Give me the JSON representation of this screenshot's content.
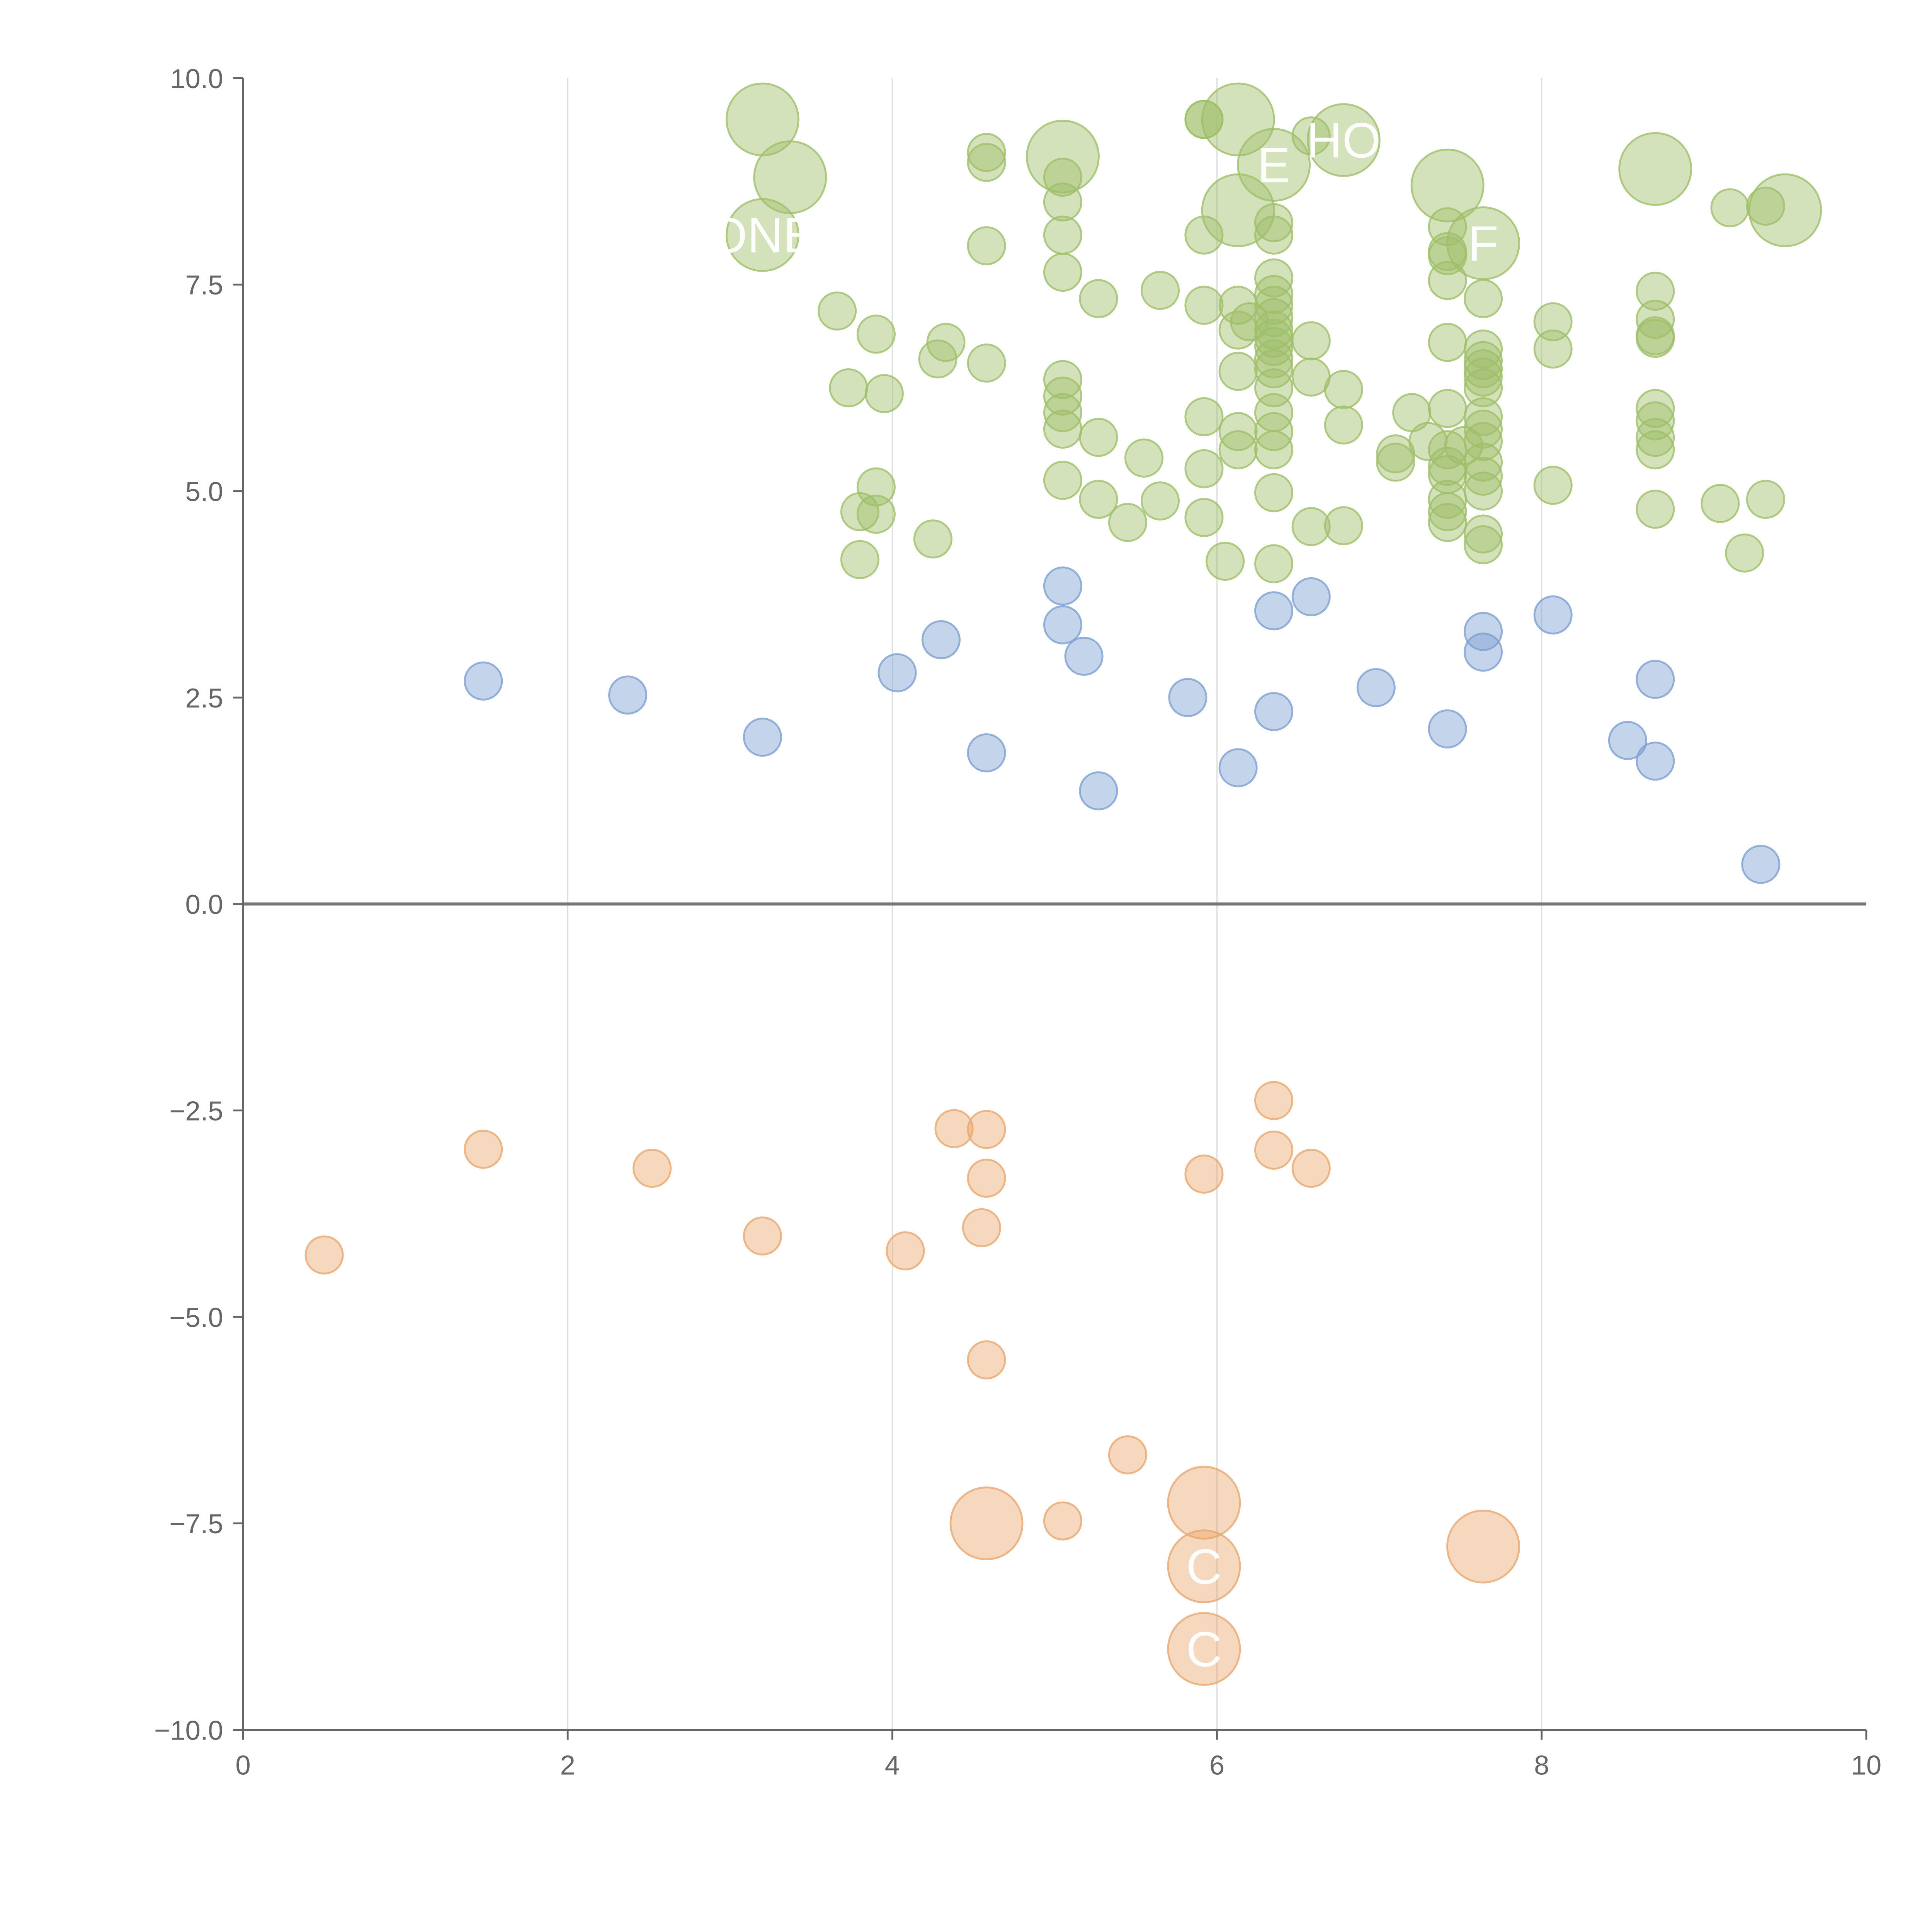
{
  "chart_data": {
    "type": "scatter",
    "title": "",
    "xlabel": "",
    "ylabel": "",
    "xlim": [
      0,
      10
    ],
    "ylim": [
      -10,
      10
    ],
    "xticks": [
      0,
      2,
      4,
      6,
      8,
      10
    ],
    "xtick_labels": [
      "0",
      "2",
      "4",
      "6",
      "8",
      "10"
    ],
    "yticks": [
      -10,
      -7.5,
      -5,
      -2.5,
      0,
      2.5,
      5,
      7.5,
      10
    ],
    "ytick_labels": [
      "−10.0",
      "−7.5",
      "−5.0",
      "−2.5",
      "0.0",
      "2.5",
      "5.0",
      "7.5",
      "10.0"
    ],
    "vertical_grid": true,
    "horizontal_grid": false,
    "zero_line": true,
    "legend": "none",
    "series": [
      {
        "color": "#9fbf6a",
        "points": [
          {
            "x": 3.2,
            "y": 9.5,
            "size": "large"
          },
          {
            "x": 3.37,
            "y": 8.8,
            "size": "large"
          },
          {
            "x": 3.2,
            "y": 8.1,
            "size": "large",
            "label": "ONE"
          },
          {
            "x": 4.58,
            "y": 9.1,
            "size": "small"
          },
          {
            "x": 4.58,
            "y": 8.98,
            "size": "small"
          },
          {
            "x": 5.05,
            "y": 9.05,
            "size": "large"
          },
          {
            "x": 5.05,
            "y": 8.8,
            "size": "small"
          },
          {
            "x": 5.05,
            "y": 8.5,
            "size": "small"
          },
          {
            "x": 5.05,
            "y": 8.1,
            "size": "small"
          },
          {
            "x": 4.58,
            "y": 7.97,
            "size": "small"
          },
          {
            "x": 5.05,
            "y": 7.65,
            "size": "small"
          },
          {
            "x": 5.92,
            "y": 9.5,
            "size": "small"
          },
          {
            "x": 5.92,
            "y": 9.5,
            "size": "small"
          },
          {
            "x": 6.13,
            "y": 9.5,
            "size": "large"
          },
          {
            "x": 6.35,
            "y": 8.95,
            "size": "large",
            "label": "E"
          },
          {
            "x": 6.58,
            "y": 9.3,
            "size": "small"
          },
          {
            "x": 6.78,
            "y": 9.25,
            "size": "large",
            "label": "HO"
          },
          {
            "x": 6.13,
            "y": 8.4,
            "size": "large"
          },
          {
            "x": 5.92,
            "y": 8.1,
            "size": "small"
          },
          {
            "x": 6.35,
            "y": 8.25,
            "size": "small"
          },
          {
            "x": 6.35,
            "y": 8.1,
            "size": "small"
          },
          {
            "x": 7.42,
            "y": 8.7,
            "size": "large"
          },
          {
            "x": 7.42,
            "y": 8.2,
            "size": "small"
          },
          {
            "x": 7.64,
            "y": 8.0,
            "size": "large",
            "label": "F"
          },
          {
            "x": 7.42,
            "y": 7.9,
            "size": "small"
          },
          {
            "x": 7.42,
            "y": 7.85,
            "size": "small"
          },
          {
            "x": 7.42,
            "y": 7.55,
            "size": "small"
          },
          {
            "x": 7.64,
            "y": 7.33,
            "size": "small"
          },
          {
            "x": 8.7,
            "y": 8.9,
            "size": "large"
          },
          {
            "x": 9.16,
            "y": 8.43,
            "size": "small"
          },
          {
            "x": 9.38,
            "y": 8.45,
            "size": "small"
          },
          {
            "x": 9.5,
            "y": 8.4,
            "size": "large"
          },
          {
            "x": 3.66,
            "y": 7.18,
            "size": "small"
          },
          {
            "x": 3.9,
            "y": 6.9,
            "size": "small"
          },
          {
            "x": 4.33,
            "y": 6.8,
            "size": "small"
          },
          {
            "x": 4.28,
            "y": 6.6,
            "size": "small"
          },
          {
            "x": 4.58,
            "y": 6.55,
            "size": "small"
          },
          {
            "x": 3.73,
            "y": 6.25,
            "size": "small"
          },
          {
            "x": 3.95,
            "y": 6.18,
            "size": "small"
          },
          {
            "x": 5.27,
            "y": 7.33,
            "size": "small"
          },
          {
            "x": 5.65,
            "y": 7.43,
            "size": "small"
          },
          {
            "x": 5.92,
            "y": 7.25,
            "size": "small"
          },
          {
            "x": 6.13,
            "y": 7.25,
            "size": "small"
          },
          {
            "x": 6.35,
            "y": 7.58,
            "size": "small"
          },
          {
            "x": 6.35,
            "y": 7.38,
            "size": "small"
          },
          {
            "x": 6.35,
            "y": 7.25,
            "size": "small"
          },
          {
            "x": 6.2,
            "y": 7.05,
            "size": "small"
          },
          {
            "x": 6.35,
            "y": 7.1,
            "size": "small"
          },
          {
            "x": 6.13,
            "y": 6.95,
            "size": "small"
          },
          {
            "x": 6.35,
            "y": 6.95,
            "size": "small"
          },
          {
            "x": 6.35,
            "y": 6.85,
            "size": "small"
          },
          {
            "x": 6.35,
            "y": 6.75,
            "size": "small"
          },
          {
            "x": 6.58,
            "y": 6.82,
            "size": "small"
          },
          {
            "x": 6.13,
            "y": 6.45,
            "size": "small"
          },
          {
            "x": 6.35,
            "y": 6.6,
            "size": "small"
          },
          {
            "x": 6.35,
            "y": 6.48,
            "size": "small"
          },
          {
            "x": 6.58,
            "y": 6.38,
            "size": "small"
          },
          {
            "x": 6.35,
            "y": 6.25,
            "size": "small"
          },
          {
            "x": 6.78,
            "y": 6.23,
            "size": "small"
          },
          {
            "x": 5.05,
            "y": 6.35,
            "size": "small"
          },
          {
            "x": 5.05,
            "y": 6.15,
            "size": "small"
          },
          {
            "x": 5.05,
            "y": 5.95,
            "size": "small"
          },
          {
            "x": 5.05,
            "y": 5.75,
            "size": "small"
          },
          {
            "x": 5.27,
            "y": 5.65,
            "size": "small"
          },
          {
            "x": 5.55,
            "y": 5.4,
            "size": "small"
          },
          {
            "x": 5.92,
            "y": 5.9,
            "size": "small"
          },
          {
            "x": 6.13,
            "y": 5.72,
            "size": "small"
          },
          {
            "x": 6.13,
            "y": 5.5,
            "size": "small"
          },
          {
            "x": 6.35,
            "y": 5.95,
            "size": "small"
          },
          {
            "x": 6.35,
            "y": 5.72,
            "size": "small"
          },
          {
            "x": 6.35,
            "y": 5.5,
            "size": "small"
          },
          {
            "x": 6.78,
            "y": 5.8,
            "size": "small"
          },
          {
            "x": 5.92,
            "y": 5.27,
            "size": "small"
          },
          {
            "x": 5.05,
            "y": 5.13,
            "size": "small"
          },
          {
            "x": 5.27,
            "y": 4.9,
            "size": "small"
          },
          {
            "x": 5.45,
            "y": 4.62,
            "size": "small"
          },
          {
            "x": 5.65,
            "y": 4.88,
            "size": "small"
          },
          {
            "x": 5.92,
            "y": 4.68,
            "size": "small"
          },
          {
            "x": 6.35,
            "y": 4.98,
            "size": "small"
          },
          {
            "x": 6.58,
            "y": 4.57,
            "size": "small"
          },
          {
            "x": 6.78,
            "y": 4.58,
            "size": "small"
          },
          {
            "x": 6.05,
            "y": 4.15,
            "size": "small"
          },
          {
            "x": 6.35,
            "y": 4.12,
            "size": "small"
          },
          {
            "x": 3.9,
            "y": 5.05,
            "size": "small"
          },
          {
            "x": 3.8,
            "y": 4.75,
            "size": "small"
          },
          {
            "x": 3.9,
            "y": 4.72,
            "size": "small"
          },
          {
            "x": 4.25,
            "y": 4.42,
            "size": "small"
          },
          {
            "x": 3.8,
            "y": 4.17,
            "size": "small"
          },
          {
            "x": 7.2,
            "y": 5.95,
            "size": "small"
          },
          {
            "x": 7.1,
            "y": 5.45,
            "size": "small"
          },
          {
            "x": 7.1,
            "y": 5.35,
            "size": "small"
          },
          {
            "x": 7.3,
            "y": 5.6,
            "size": "small"
          },
          {
            "x": 7.42,
            "y": 6.8,
            "size": "small"
          },
          {
            "x": 7.42,
            "y": 6.0,
            "size": "small"
          },
          {
            "x": 7.42,
            "y": 5.5,
            "size": "small"
          },
          {
            "x": 7.42,
            "y": 5.3,
            "size": "small"
          },
          {
            "x": 7.42,
            "y": 5.2,
            "size": "small"
          },
          {
            "x": 7.52,
            "y": 5.55,
            "size": "small"
          },
          {
            "x": 7.42,
            "y": 4.9,
            "size": "small"
          },
          {
            "x": 7.42,
            "y": 4.75,
            "size": "small"
          },
          {
            "x": 7.42,
            "y": 4.62,
            "size": "small"
          },
          {
            "x": 7.64,
            "y": 6.72,
            "size": "small"
          },
          {
            "x": 7.64,
            "y": 6.58,
            "size": "small"
          },
          {
            "x": 7.64,
            "y": 6.48,
            "size": "small"
          },
          {
            "x": 7.64,
            "y": 6.38,
            "size": "small"
          },
          {
            "x": 7.64,
            "y": 6.25,
            "size": "small"
          },
          {
            "x": 7.64,
            "y": 5.9,
            "size": "small"
          },
          {
            "x": 7.64,
            "y": 5.75,
            "size": "small"
          },
          {
            "x": 7.64,
            "y": 5.6,
            "size": "small"
          },
          {
            "x": 7.64,
            "y": 5.35,
            "size": "small"
          },
          {
            "x": 7.64,
            "y": 5.18,
            "size": "small"
          },
          {
            "x": 7.64,
            "y": 5.0,
            "size": "small"
          },
          {
            "x": 7.64,
            "y": 4.48,
            "size": "small"
          },
          {
            "x": 7.64,
            "y": 4.35,
            "size": "small"
          },
          {
            "x": 8.07,
            "y": 7.05,
            "size": "small"
          },
          {
            "x": 8.07,
            "y": 6.72,
            "size": "small"
          },
          {
            "x": 8.07,
            "y": 5.07,
            "size": "small"
          },
          {
            "x": 8.7,
            "y": 7.42,
            "size": "small"
          },
          {
            "x": 8.7,
            "y": 7.08,
            "size": "small"
          },
          {
            "x": 8.7,
            "y": 6.88,
            "size": "small"
          },
          {
            "x": 8.7,
            "y": 6.85,
            "size": "small"
          },
          {
            "x": 8.7,
            "y": 6.0,
            "size": "small"
          },
          {
            "x": 8.7,
            "y": 5.85,
            "size": "small"
          },
          {
            "x": 8.7,
            "y": 5.65,
            "size": "small"
          },
          {
            "x": 8.7,
            "y": 5.5,
            "size": "small"
          },
          {
            "x": 8.7,
            "y": 4.78,
            "size": "small"
          },
          {
            "x": 9.1,
            "y": 4.85,
            "size": "small"
          },
          {
            "x": 9.38,
            "y": 4.9,
            "size": "small"
          },
          {
            "x": 9.25,
            "y": 4.25,
            "size": "small"
          }
        ]
      },
      {
        "color": "#7d9fd2",
        "points": [
          {
            "x": 1.48,
            "y": 2.7
          },
          {
            "x": 2.37,
            "y": 2.53
          },
          {
            "x": 3.2,
            "y": 2.02
          },
          {
            "x": 4.03,
            "y": 2.8
          },
          {
            "x": 4.3,
            "y": 3.2
          },
          {
            "x": 4.58,
            "y": 1.83
          },
          {
            "x": 5.05,
            "y": 3.85
          },
          {
            "x": 5.05,
            "y": 3.38
          },
          {
            "x": 5.18,
            "y": 3.0
          },
          {
            "x": 5.27,
            "y": 1.37
          },
          {
            "x": 5.82,
            "y": 2.5
          },
          {
            "x": 6.13,
            "y": 1.65
          },
          {
            "x": 6.35,
            "y": 3.55
          },
          {
            "x": 6.35,
            "y": 2.33
          },
          {
            "x": 6.58,
            "y": 3.72
          },
          {
            "x": 6.98,
            "y": 2.62
          },
          {
            "x": 7.42,
            "y": 2.12
          },
          {
            "x": 7.64,
            "y": 3.3
          },
          {
            "x": 7.64,
            "y": 3.05
          },
          {
            "x": 8.07,
            "y": 3.5
          },
          {
            "x": 8.53,
            "y": 1.98
          },
          {
            "x": 8.7,
            "y": 2.72
          },
          {
            "x": 8.7,
            "y": 1.73
          },
          {
            "x": 9.35,
            "y": 0.48
          }
        ]
      },
      {
        "color": "#e9a86f",
        "points": [
          {
            "x": 0.5,
            "y": -4.25,
            "size": "small"
          },
          {
            "x": 1.48,
            "y": -2.97,
            "size": "small"
          },
          {
            "x": 2.52,
            "y": -3.2,
            "size": "small"
          },
          {
            "x": 3.2,
            "y": -4.02,
            "size": "small"
          },
          {
            "x": 4.08,
            "y": -4.2,
            "size": "small"
          },
          {
            "x": 4.38,
            "y": -2.72,
            "size": "small"
          },
          {
            "x": 4.58,
            "y": -2.73,
            "size": "small"
          },
          {
            "x": 4.58,
            "y": -3.32,
            "size": "small"
          },
          {
            "x": 4.55,
            "y": -3.92,
            "size": "small"
          },
          {
            "x": 4.58,
            "y": -5.52,
            "size": "small"
          },
          {
            "x": 5.92,
            "y": -3.27,
            "size": "small"
          },
          {
            "x": 6.35,
            "y": -2.38,
            "size": "small"
          },
          {
            "x": 6.35,
            "y": -2.98,
            "size": "small"
          },
          {
            "x": 6.58,
            "y": -3.2,
            "size": "small"
          },
          {
            "x": 5.45,
            "y": -6.67,
            "size": "small"
          },
          {
            "x": 5.05,
            "y": -7.47,
            "size": "small"
          },
          {
            "x": 4.58,
            "y": -7.5,
            "size": "large"
          },
          {
            "x": 5.92,
            "y": -7.25,
            "size": "large"
          },
          {
            "x": 5.92,
            "y": -8.02,
            "size": "large",
            "label": "C"
          },
          {
            "x": 5.92,
            "y": -9.02,
            "size": "large",
            "label": "C"
          },
          {
            "x": 7.64,
            "y": -7.78,
            "size": "large"
          }
        ]
      }
    ]
  }
}
